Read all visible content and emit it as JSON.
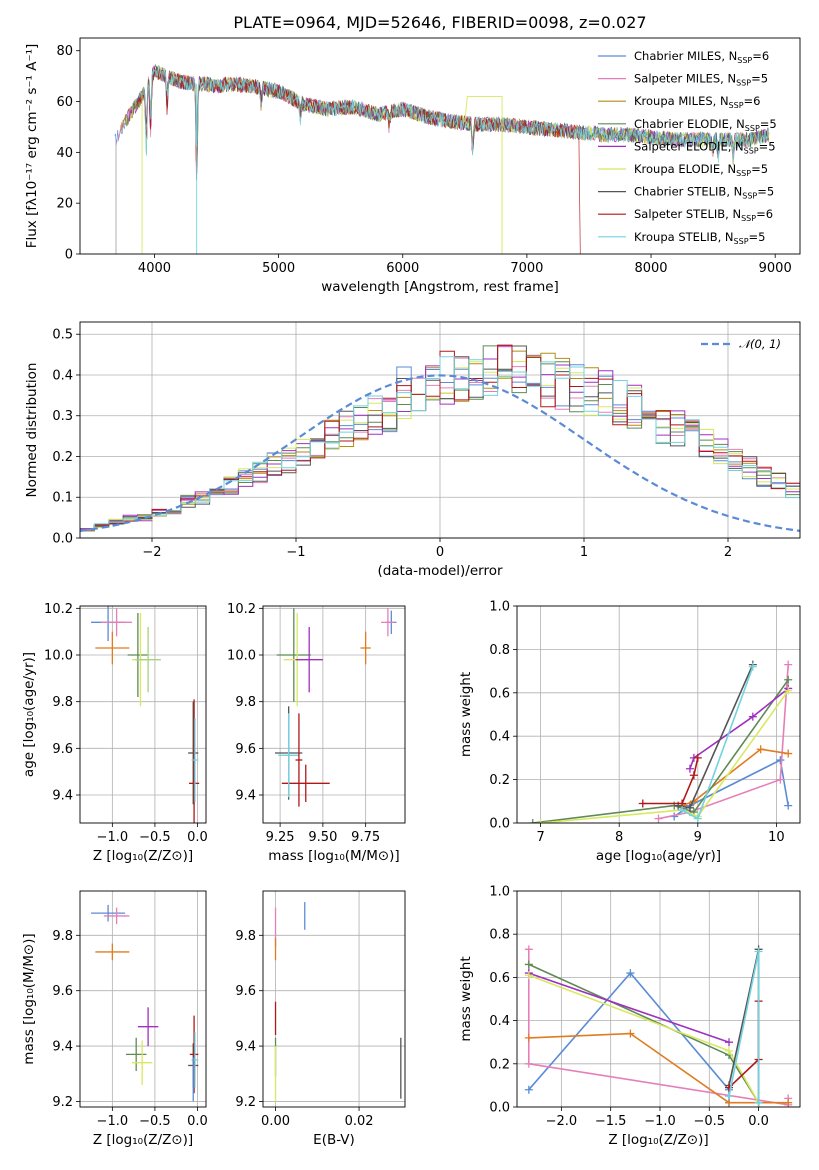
{
  "colors": {
    "blue": "#5b8bd6",
    "orange": "#e07b20",
    "olive": "#b38b17",
    "green": "#5f8a55",
    "purple": "#a030c0",
    "yellow": "#d8e860",
    "gray": "#555555",
    "red": "#b01818",
    "cyan": "#72d3e0",
    "pink": "#e57fba",
    "lightgreen": "#a8d080",
    "gaussian": "#5b8bd6"
  },
  "chart_data": [
    {
      "type": "line",
      "title": "PLATE=0964, MJD=52646, FIBERID=0098, z=0.027",
      "xlabel": "wavelength [Angstrom, rest frame]",
      "ylabel": "Flux [fλ10⁻¹⁷ erg cm⁻² s⁻¹ A⁻¹]",
      "xlim": [
        3400,
        9200
      ],
      "ylim": [
        0,
        85
      ],
      "xticks": [
        4000,
        5000,
        6000,
        7000,
        8000,
        9000
      ],
      "yticks": [
        0,
        20,
        40,
        60,
        80
      ],
      "legend": "top-right",
      "series": [
        {
          "name": "Chabrier MILES, N_SSP=6",
          "color": "#5b8bd6"
        },
        {
          "name": "Salpeter MILES, N_SSP=5",
          "color": "#e57fba"
        },
        {
          "name": "Kroupa MILES, N_SSP=6",
          "color": "#b38b17"
        },
        {
          "name": "Chabrier ELODIE, N_SSP=5",
          "color": "#5f8a55"
        },
        {
          "name": "Salpeter ELODIE, N_SSP=5",
          "color": "#a030c0"
        },
        {
          "name": "Kroupa ELODIE, N_SSP=5",
          "color": "#d8e860"
        },
        {
          "name": "Chabrier STELIB, N_SSP=5",
          "color": "#555555"
        },
        {
          "name": "Salpeter STELIB, N_SSP=6",
          "color": "#b01818"
        },
        {
          "name": "Kroupa STELIB, N_SSP=5",
          "color": "#72d3e0"
        }
      ],
      "continuum": {
        "x": [
          3700,
          3800,
          3900,
          4000,
          4100,
          4200,
          4300,
          4400,
          4500,
          4600,
          4800,
          5000,
          5200,
          5400,
          5600,
          5800,
          6000,
          6200,
          6400,
          6600,
          6800,
          7000,
          7200,
          7400,
          7600,
          7800,
          8000,
          8200,
          8400,
          8600,
          8800,
          8950
        ],
        "y": [
          46,
          55,
          62,
          72,
          70,
          68,
          67,
          67,
          66,
          67,
          66,
          64,
          59,
          57,
          58,
          55,
          57,
          54,
          52,
          51,
          51,
          50,
          49,
          48,
          47,
          47,
          46,
          45,
          45,
          45,
          45,
          47
        ]
      }
    },
    {
      "type": "histogram",
      "xlabel": "(data-model)/error",
      "ylabel": "Normed distribution",
      "xlim": [
        -2.5,
        2.5
      ],
      "ylim": [
        0,
        0.53
      ],
      "xticks": [
        -2,
        -1,
        0,
        1,
        2
      ],
      "yticks": [
        0.0,
        0.1,
        0.2,
        0.3,
        0.4,
        0.5
      ],
      "legend": "top-right",
      "gaussian_label": "𝒩(0, 1)",
      "bin_width": 0.1,
      "bin_start": -2.5,
      "reference": [
        0.02,
        0.03,
        0.04,
        0.05,
        0.05,
        0.06,
        0.07,
        0.09,
        0.1,
        0.11,
        0.13,
        0.15,
        0.16,
        0.18,
        0.19,
        0.21,
        0.23,
        0.25,
        0.27,
        0.28,
        0.3,
        0.31,
        0.33,
        0.34,
        0.35,
        0.37,
        0.38,
        0.38,
        0.39,
        0.39,
        0.4,
        0.4,
        0.39,
        0.38,
        0.37,
        0.36,
        0.35,
        0.33,
        0.32,
        0.3,
        0.28,
        0.27,
        0.25,
        0.23,
        0.21,
        0.19,
        0.17,
        0.15,
        0.14,
        0.12,
        0.11,
        0.09,
        0.08,
        0.07,
        0.06,
        0.05,
        0.04,
        0.04,
        0.03,
        0.03
      ]
    },
    {
      "type": "scatter",
      "xlabel": "Z [log₁₀(Z/Z⊙)]",
      "ylabel": "age  [log₁₀(age/yr)]",
      "xlim": [
        -1.38,
        0.1
      ],
      "ylim": [
        9.28,
        10.21
      ],
      "xticks": [
        -1.0,
        -0.5,
        0.0
      ],
      "yticks": [
        9.4,
        9.6,
        9.8,
        10.0,
        10.2
      ],
      "points": [
        {
          "x": -1.05,
          "y": 10.14,
          "xerr": 0.2,
          "yerr": 0.08,
          "color": "#5b8bd6"
        },
        {
          "x": -0.95,
          "y": 10.14,
          "xerr": 0.18,
          "yerr": 0.06,
          "color": "#e57fba"
        },
        {
          "x": -1.0,
          "y": 10.03,
          "xerr": 0.2,
          "yerr": 0.07,
          "color": "#e07b20"
        },
        {
          "x": -0.7,
          "y": 10.0,
          "xerr": 0.12,
          "yerr": 0.18,
          "color": "#5f8a55"
        },
        {
          "x": -0.67,
          "y": 9.98,
          "xerr": 0.1,
          "yerr": 0.2,
          "color": "#d8e860"
        },
        {
          "x": -0.58,
          "y": 9.98,
          "xerr": 0.15,
          "yerr": 0.14,
          "color": "#a8d080"
        },
        {
          "x": -0.05,
          "y": 9.58,
          "xerr": 0.06,
          "yerr": 0.22,
          "color": "#555555"
        },
        {
          "x": -0.04,
          "y": 9.45,
          "xerr": 0.06,
          "yerr": 0.36,
          "color": "#b01818"
        },
        {
          "x": -0.03,
          "y": 9.55,
          "xerr": 0.04,
          "yerr": 0.18,
          "color": "#72d3e0"
        }
      ]
    },
    {
      "type": "scatter",
      "xlabel": "mass [log₁₀(M/M⊙)]",
      "ylabel": "",
      "xlim": [
        9.15,
        9.98
      ],
      "ylim": [
        9.28,
        10.21
      ],
      "xticks": [
        9.25,
        9.5,
        9.75
      ],
      "yticks": [
        9.4,
        9.6,
        9.8,
        10.0,
        10.2
      ],
      "points": [
        {
          "x": 9.9,
          "y": 10.14,
          "xerr": 0.03,
          "yerr": 0.05,
          "color": "#5b8bd6"
        },
        {
          "x": 9.88,
          "y": 10.14,
          "xerr": 0.04,
          "yerr": 0.06,
          "color": "#e57fba"
        },
        {
          "x": 9.75,
          "y": 10.03,
          "xerr": 0.03,
          "yerr": 0.07,
          "color": "#e07b20"
        },
        {
          "x": 9.33,
          "y": 10.0,
          "xerr": 0.1,
          "yerr": 0.2,
          "color": "#5f8a55"
        },
        {
          "x": 9.35,
          "y": 9.98,
          "xerr": 0.08,
          "yerr": 0.2,
          "color": "#d8e860"
        },
        {
          "x": 9.42,
          "y": 9.98,
          "xerr": 0.08,
          "yerr": 0.14,
          "color": "#a030c0"
        },
        {
          "x": 9.3,
          "y": 9.58,
          "xerr": 0.08,
          "yerr": 0.2,
          "color": "#555555"
        },
        {
          "x": 9.4,
          "y": 9.45,
          "xerr": 0.14,
          "yerr": 0.08,
          "color": "#b01818"
        },
        {
          "x": 9.3,
          "y": 9.57,
          "xerr": 0.06,
          "yerr": 0.18,
          "color": "#72d3e0"
        },
        {
          "x": 9.36,
          "y": 9.55,
          "xerr": 0.02,
          "yerr": 0.2,
          "color": "#b01818"
        }
      ]
    },
    {
      "type": "line",
      "xlabel": "age  [log₁₀(age/yr)]",
      "ylabel": "mass weight",
      "xlim": [
        6.7,
        10.3
      ],
      "ylim": [
        0,
        1.0
      ],
      "xticks": [
        7,
        8,
        9,
        10
      ],
      "yticks": [
        0.0,
        0.2,
        0.4,
        0.6,
        0.8,
        1.0
      ],
      "series": [
        {
          "color": "#5b8bd6",
          "x": [
            8.7,
            8.9,
            10.05,
            10.15
          ],
          "y": [
            0.03,
            0.08,
            0.29,
            0.08
          ]
        },
        {
          "color": "#e57fba",
          "x": [
            8.5,
            8.9,
            10.05,
            10.15
          ],
          "y": [
            0.02,
            0.05,
            0.2,
            0.73
          ]
        },
        {
          "color": "#e07b20",
          "x": [
            8.8,
            8.95,
            9.8,
            10.15
          ],
          "y": [
            0.08,
            0.1,
            0.34,
            0.32
          ]
        },
        {
          "color": "#5f8a55",
          "x": [
            6.9,
            8.7,
            8.95,
            10.15
          ],
          "y": [
            0.0,
            0.08,
            0.05,
            0.66
          ]
        },
        {
          "color": "#a030c0",
          "x": [
            8.9,
            8.95,
            9.7,
            10.15
          ],
          "y": [
            0.25,
            0.3,
            0.49,
            0.62
          ]
        },
        {
          "color": "#d8e860",
          "x": [
            7.0,
            8.8,
            9.0,
            10.15
          ],
          "y": [
            0.0,
            0.06,
            0.03,
            0.61
          ]
        },
        {
          "color": "#555555",
          "x": [
            8.75,
            8.9,
            9.7
          ],
          "y": [
            0.08,
            0.07,
            0.73
          ]
        },
        {
          "color": "#b01818",
          "x": [
            8.3,
            8.8,
            8.95,
            9.0
          ],
          "y": [
            0.09,
            0.09,
            0.22,
            0.3
          ]
        },
        {
          "color": "#72d3e0",
          "x": [
            8.8,
            9.0,
            9.7
          ],
          "y": [
            0.06,
            0.02,
            0.72
          ]
        }
      ]
    },
    {
      "type": "scatter",
      "xlabel": "Z [log₁₀(Z/Z⊙)]",
      "ylabel": "mass [log₁₀(M/M⊙)]",
      "xlim": [
        -1.38,
        0.1
      ],
      "ylim": [
        9.18,
        9.96
      ],
      "xticks": [
        -1.0,
        -0.5,
        0.0
      ],
      "yticks": [
        9.2,
        9.4,
        9.6,
        9.8
      ],
      "points": [
        {
          "x": -1.05,
          "y": 9.88,
          "xerr": 0.2,
          "yerr": 0.03,
          "color": "#5b8bd6"
        },
        {
          "x": -0.95,
          "y": 9.87,
          "xerr": 0.15,
          "yerr": 0.03,
          "color": "#e57fba"
        },
        {
          "x": -1.0,
          "y": 9.74,
          "xerr": 0.2,
          "yerr": 0.03,
          "color": "#e07b20"
        },
        {
          "x": -0.72,
          "y": 9.37,
          "xerr": 0.12,
          "yerr": 0.06,
          "color": "#5f8a55"
        },
        {
          "x": -0.65,
          "y": 9.34,
          "xerr": 0.12,
          "yerr": 0.08,
          "color": "#d8e860"
        },
        {
          "x": -0.58,
          "y": 9.47,
          "xerr": 0.12,
          "yerr": 0.07,
          "color": "#a030c0"
        },
        {
          "x": -0.05,
          "y": 9.33,
          "xerr": 0.06,
          "yerr": 0.08,
          "color": "#555555"
        },
        {
          "x": -0.04,
          "y": 9.37,
          "xerr": 0.05,
          "yerr": 0.14,
          "color": "#b01818"
        },
        {
          "x": -0.03,
          "y": 9.35,
          "xerr": 0.04,
          "yerr": 0.1,
          "color": "#72d3e0"
        },
        {
          "x": -0.05,
          "y": 9.28,
          "xerr": 0.0,
          "yerr": 0.08,
          "color": "#5b8bd6"
        }
      ]
    },
    {
      "type": "scatter",
      "xlabel": "E(B-V)",
      "ylabel": "",
      "xlim": [
        -0.003,
        0.031
      ],
      "ylim": [
        9.18,
        9.96
      ],
      "xticks": [
        0.0,
        0.02
      ],
      "yticks": [
        9.2,
        9.4,
        9.6,
        9.8
      ],
      "points": [
        {
          "x": 0.007,
          "y": 9.87,
          "xerr": 0.0,
          "yerr": 0.05,
          "color": "#5b8bd6"
        },
        {
          "x": 0.0,
          "y": 9.83,
          "xerr": 0.0,
          "yerr": 0.07,
          "color": "#e57fba"
        },
        {
          "x": 0.0,
          "y": 9.75,
          "xerr": 0.0,
          "yerr": 0.04,
          "color": "#e07b20"
        },
        {
          "x": 0.0,
          "y": 9.5,
          "xerr": 0.0,
          "yerr": 0.06,
          "color": "#b01818"
        },
        {
          "x": 0.0,
          "y": 9.36,
          "xerr": 0.0,
          "yerr": 0.07,
          "color": "#5f8a55"
        },
        {
          "x": 0.0,
          "y": 9.3,
          "xerr": 0.0,
          "yerr": 0.1,
          "color": "#d8e860"
        },
        {
          "x": 0.03,
          "y": 9.32,
          "xerr": 0.0,
          "yerr": 0.11,
          "color": "#555555"
        }
      ]
    },
    {
      "type": "line",
      "xlabel": "Z [log₁₀(Z/Z⊙)]",
      "ylabel": "mass weight",
      "xlim": [
        -2.45,
        0.42
      ],
      "ylim": [
        0,
        1.0
      ],
      "xticks": [
        -2.0,
        -1.5,
        -1.0,
        -0.5,
        0.0
      ],
      "yticks": [
        0.0,
        0.2,
        0.4,
        0.6,
        0.8,
        1.0
      ],
      "series": [
        {
          "color": "#5b8bd6",
          "x": [
            -2.33,
            -1.3,
            -0.3,
            -0.3
          ],
          "y": [
            0.08,
            0.62,
            0.08,
            0.02
          ]
        },
        {
          "color": "#e57fba",
          "x": [
            -2.33,
            -2.33,
            0.3,
            0.3
          ],
          "y": [
            0.73,
            0.2,
            0.01,
            0.04
          ]
        },
        {
          "color": "#e07b20",
          "x": [
            -2.33,
            -1.3,
            -0.3,
            0.3
          ],
          "y": [
            0.32,
            0.34,
            0.02,
            0.02
          ]
        },
        {
          "color": "#5f8a55",
          "x": [
            -2.33,
            -0.3,
            0.0
          ],
          "y": [
            0.66,
            0.24,
            0.02
          ]
        },
        {
          "color": "#a030c0",
          "x": [
            -2.33,
            -0.3
          ],
          "y": [
            0.62,
            0.3
          ]
        },
        {
          "color": "#d8e860",
          "x": [
            -2.33,
            -0.3,
            0.0
          ],
          "y": [
            0.61,
            0.26,
            0.02
          ]
        },
        {
          "color": "#555555",
          "x": [
            -0.3,
            0.0,
            0.0
          ],
          "y": [
            0.1,
            0.73,
            0.02
          ]
        },
        {
          "color": "#b01818",
          "x": [
            -0.3,
            0.0,
            0.0
          ],
          "y": [
            0.09,
            0.22,
            0.49
          ]
        },
        {
          "color": "#72d3e0",
          "x": [
            -0.3,
            0.0,
            0.0
          ],
          "y": [
            0.05,
            0.72,
            0.02
          ]
        }
      ]
    }
  ]
}
